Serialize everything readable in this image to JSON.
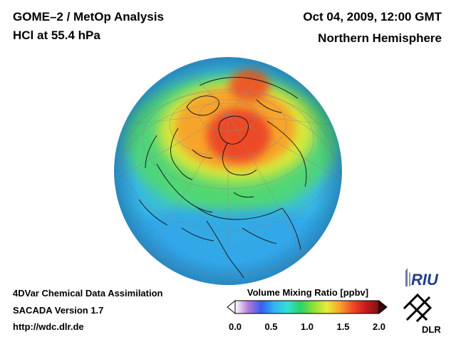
{
  "header": {
    "title": "GOME–2 / MetOp Analysis",
    "subtitle": "HCl at 55.4 hPa",
    "datetime": "Oct 04, 2009, 12:00 GMT",
    "region": "Northern Hemisphere"
  },
  "footer": {
    "line1": "4DVar Chemical Data Assimilation",
    "line2": "SACADA Version 1.7",
    "line3": "http://wdc.dlr.de"
  },
  "colorbar": {
    "title": "Volume Mixing Ratio [ppbv]",
    "min": 0.0,
    "max": 2.0,
    "ticks": [
      "0.0",
      "0.5",
      "1.0",
      "1.5",
      "2.0"
    ],
    "colors": [
      "#ffffff",
      "#b27ad8",
      "#3a5cf0",
      "#2fb6f2",
      "#33e0d0",
      "#2bd26a",
      "#8ee034",
      "#e8ea3a",
      "#f7a52c",
      "#ee4a26",
      "#c81a1e",
      "#7a1010"
    ]
  },
  "logos": {
    "riu": "RIU",
    "dlr": "DLR"
  },
  "map": {
    "projection": "orthographic",
    "field_colors": {
      "ocean_low": "#33a6ea",
      "mid": "#3fd4a8",
      "high": "#f7a52c",
      "peak": "#ee4a26"
    }
  }
}
